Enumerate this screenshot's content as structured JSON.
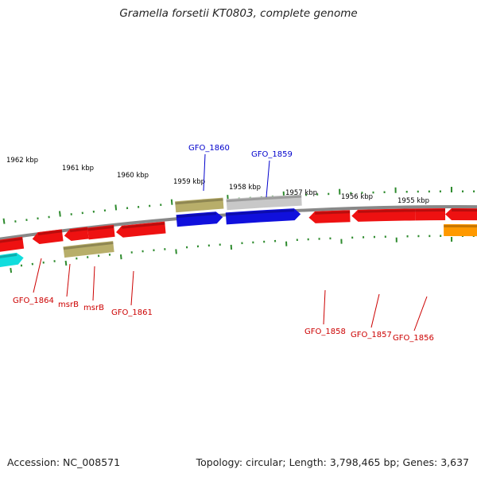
{
  "title": "Gramella forsetii KT0803, complete genome",
  "footer": {
    "accession": "Accession: NC_008571",
    "summary": "Topology: circular; Length: 3,798,465 bp; Genes: 3,637"
  },
  "colors": {
    "backbone": "#888888",
    "tick": "#2e8b2e",
    "forward_label": "#0000cc",
    "reverse_label": "#cc0000",
    "red_gene": "#ee1111",
    "blue_gene": "#1010dd",
    "khaki_gene": "#b8ae6a",
    "gray_gene": "#c8c8c8",
    "cyan_gene": "#11dddd",
    "orange_gene": "#ff9900"
  },
  "kbp_labels": [
    "1962 kbp",
    "1961 kbp",
    "1960 kbp",
    "1959 kbp",
    "1958 kbp",
    "1957 kbp",
    "1956 kbp",
    "1955 kbp"
  ],
  "gene_labels": {
    "forward": [
      "GFO_1860",
      "GFO_1859"
    ],
    "reverse": [
      "GFO_1864",
      "msrB",
      "msrB",
      "GFO_1861",
      "GFO_1858",
      "GFO_1857",
      "GFO_1856"
    ]
  }
}
